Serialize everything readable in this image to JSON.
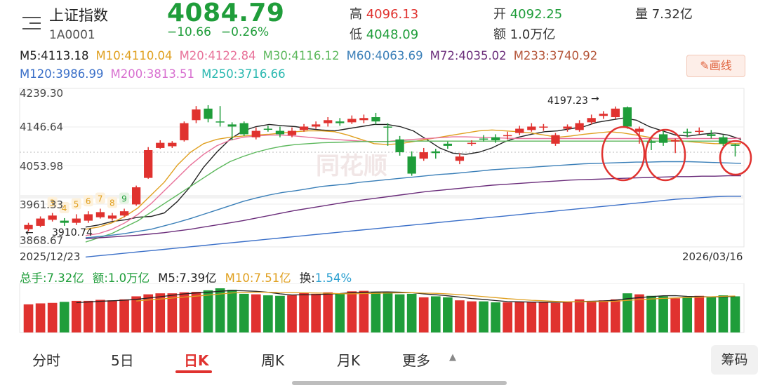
{
  "header": {
    "title": "上证指数",
    "code": "1A0001",
    "price": "4084.79",
    "change_abs": "−10.66",
    "change_pct": "−0.26%",
    "high_label": "高",
    "high_value": "4096.13",
    "low_label": "低",
    "low_value": "4048.09",
    "open_label": "开",
    "open_value": "4092.25",
    "amount_label": "额",
    "amount_value": "1.0万亿",
    "volume_label": "量",
    "volume_value": "7.32亿"
  },
  "ma_legend": {
    "row1": [
      "M5:4113.18",
      "M10:4110.04",
      "M20:4122.84",
      "M30:4116.12",
      "M60:4063.69",
      "M72:4035.02",
      "M233:3740.92"
    ],
    "row2": [
      "M120:3986.99",
      "M200:3813.51",
      "M250:3716.66"
    ],
    "colors": {
      "M5": "#222222",
      "M10": "#e0a020",
      "M20": "#e8729a",
      "M30": "#5cb85c",
      "M60": "#3a7fb8",
      "M72": "#6a2c7a",
      "M233": "#b5563a",
      "M120": "#3a6fc8",
      "M200": "#d870d0",
      "M250": "#2ab8b0"
    }
  },
  "draw_button": "画线",
  "y_axis": [
    "4239.30",
    "4146.64",
    "4053.98",
    "3961.33",
    "3868.67"
  ],
  "dates": {
    "start": "2025/12/23",
    "end": "2026/03/16"
  },
  "annotations": {
    "high_mark": "4197.23",
    "low_mark": "3910.74"
  },
  "seq_counts": [
    "3",
    "4",
    "5",
    "6",
    "7",
    "8",
    "9"
  ],
  "watermark": "同花顺",
  "volume_legend": {
    "total": "总手:7.32亿",
    "amount": "额:1.0万亿",
    "m5": "M5:7.39亿",
    "m10": "M10:7.51亿",
    "turnover_label": "换:",
    "turnover_value": "1.54%"
  },
  "tabs": [
    "分时",
    "5日",
    "日K",
    "周K",
    "月K",
    "更多"
  ],
  "active_tab": "日K",
  "chip_button": "筹码",
  "colors": {
    "up": "#e0322f",
    "down": "#1f9d3a"
  },
  "chart_data": {
    "type": "candlestick",
    "ylim": [
      3868.67,
      4239.3
    ],
    "candles": [
      {
        "o": 3910,
        "c": 3920,
        "h": 3925,
        "l": 3905,
        "v": 5.6
      },
      {
        "o": 3918,
        "c": 3935,
        "h": 3940,
        "l": 3915,
        "v": 5.8
      },
      {
        "o": 3932,
        "c": 3942,
        "h": 3948,
        "l": 3928,
        "v": 5.9
      },
      {
        "o": 3930,
        "c": 3925,
        "h": 3936,
        "l": 3918,
        "v": 6.1
      },
      {
        "o": 3925,
        "c": 3935,
        "h": 3945,
        "l": 3920,
        "v": 6.3
      },
      {
        "o": 3930,
        "c": 3945,
        "h": 3952,
        "l": 3925,
        "v": 6.3
      },
      {
        "o": 3938,
        "c": 3950,
        "h": 3958,
        "l": 3935,
        "v": 6.5
      },
      {
        "o": 3935,
        "c": 3942,
        "h": 3948,
        "l": 3930,
        "v": 6.4
      },
      {
        "o": 3942,
        "c": 3952,
        "h": 3958,
        "l": 3938,
        "v": 6.6
      },
      {
        "o": 3968,
        "c": 4008,
        "h": 4012,
        "l": 3965,
        "v": 7.2
      },
      {
        "o": 4030,
        "c": 4095,
        "h": 4102,
        "l": 4028,
        "v": 7.6
      },
      {
        "o": 4100,
        "c": 4112,
        "h": 4118,
        "l": 4098,
        "v": 7.8
      },
      {
        "o": 4104,
        "c": 4112,
        "h": 4116,
        "l": 4100,
        "v": 7.8
      },
      {
        "o": 4118,
        "c": 4158,
        "h": 4162,
        "l": 4115,
        "v": 8.0
      },
      {
        "o": 4165,
        "c": 4190,
        "h": 4198,
        "l": 4158,
        "v": 8.1
      },
      {
        "o": 4192,
        "c": 4168,
        "h": 4200,
        "l": 4160,
        "v": 8.4
      },
      {
        "o": 4162,
        "c": 4160,
        "h": 4198,
        "l": 4150,
        "v": 8.8
      },
      {
        "o": 4155,
        "c": 4150,
        "h": 4160,
        "l": 4118,
        "v": 8.5
      },
      {
        "o": 4158,
        "c": 4132,
        "h": 4162,
        "l": 4128,
        "v": 7.7
      },
      {
        "o": 4125,
        "c": 4140,
        "h": 4148,
        "l": 4120,
        "v": 7.6
      },
      {
        "o": 4145,
        "c": 4144,
        "h": 4152,
        "l": 4138,
        "v": 7.4
      },
      {
        "o": 4140,
        "c": 4132,
        "h": 4150,
        "l": 4125,
        "v": 7.3
      },
      {
        "o": 4130,
        "c": 4140,
        "h": 4148,
        "l": 4125,
        "v": 7.4
      },
      {
        "o": 4142,
        "c": 4150,
        "h": 4156,
        "l": 4138,
        "v": 7.9
      },
      {
        "o": 4150,
        "c": 4155,
        "h": 4162,
        "l": 4145,
        "v": 7.7
      },
      {
        "o": 4158,
        "c": 4165,
        "h": 4172,
        "l": 4150,
        "v": 8.0
      },
      {
        "o": 4162,
        "c": 4158,
        "h": 4170,
        "l": 4152,
        "v": 7.8
      },
      {
        "o": 4160,
        "c": 4168,
        "h": 4176,
        "l": 4156,
        "v": 8.2
      },
      {
        "o": 4165,
        "c": 4170,
        "h": 4178,
        "l": 4158,
        "v": 8.3
      },
      {
        "o": 4172,
        "c": 4162,
        "h": 4182,
        "l": 4155,
        "v": 8.0
      },
      {
        "o": 4150,
        "c": 4148,
        "h": 4158,
        "l": 4105,
        "v": 8.1
      },
      {
        "o": 4120,
        "c": 4090,
        "h": 4128,
        "l": 4082,
        "v": 7.6
      },
      {
        "o": 4080,
        "c": 4040,
        "h": 4092,
        "l": 4035,
        "v": 7.7
      },
      {
        "o": 4075,
        "c": 4090,
        "h": 4100,
        "l": 4070,
        "v": 7.0
      },
      {
        "o": 4092,
        "c": 4088,
        "h": 4098,
        "l": 4075,
        "v": 7.2
      },
      {
        "o": 4110,
        "c": 4105,
        "h": 4115,
        "l": 4098,
        "v": 7.0
      },
      {
        "o": 4070,
        "c": 4080,
        "h": 4088,
        "l": 4062,
        "v": 6.4
      },
      {
        "o": 4110,
        "c": 4112,
        "h": 4118,
        "l": 4105,
        "v": 6.2
      },
      {
        "o": 4122,
        "c": 4120,
        "h": 4130,
        "l": 4115,
        "v": 6.2
      },
      {
        "o": 4125,
        "c": 4118,
        "h": 4132,
        "l": 4112,
        "v": 6.0
      },
      {
        "o": 4128,
        "c": 4130,
        "h": 4138,
        "l": 4120,
        "v": 6.0
      },
      {
        "o": 4135,
        "c": 4145,
        "h": 4152,
        "l": 4130,
        "v": 6.1
      },
      {
        "o": 4142,
        "c": 4150,
        "h": 4158,
        "l": 4138,
        "v": 6.0
      },
      {
        "o": 4148,
        "c": 4150,
        "h": 4156,
        "l": 4140,
        "v": 6.1
      },
      {
        "o": 4110,
        "c": 4130,
        "h": 4135,
        "l": 4105,
        "v": 5.9
      },
      {
        "o": 4145,
        "c": 4150,
        "h": 4155,
        "l": 4138,
        "v": 6.2
      },
      {
        "o": 4142,
        "c": 4158,
        "h": 4165,
        "l": 4138,
        "v": 6.6
      },
      {
        "o": 4160,
        "c": 4170,
        "h": 4178,
        "l": 4155,
        "v": 6.3
      },
      {
        "o": 4175,
        "c": 4180,
        "h": 4186,
        "l": 4168,
        "v": 6.4
      },
      {
        "o": 4172,
        "c": 4192,
        "h": 4197,
        "l": 4168,
        "v": 6.6
      },
      {
        "o": 4195,
        "c": 4150,
        "h": 4197,
        "l": 4145,
        "v": 7.8
      },
      {
        "o": 4138,
        "c": 4145,
        "h": 4150,
        "l": 4110,
        "v": 7.6
      },
      {
        "o": 4115,
        "c": 4112,
        "h": 4120,
        "l": 4095,
        "v": 7.3
      },
      {
        "o": 4132,
        "c": 4112,
        "h": 4140,
        "l": 4105,
        "v": 7.2
      },
      {
        "o": 4115,
        "c": 4118,
        "h": 4122,
        "l": 4088,
        "v": 6.8
      },
      {
        "o": 4138,
        "c": 4135,
        "h": 4145,
        "l": 4125,
        "v": 7.1
      },
      {
        "o": 4138,
        "c": 4140,
        "h": 4148,
        "l": 4132,
        "v": 7.3
      },
      {
        "o": 4132,
        "c": 4128,
        "h": 4142,
        "l": 4122,
        "v": 7.0
      },
      {
        "o": 4125,
        "c": 4110,
        "h": 4130,
        "l": 4105,
        "v": 7.4
      },
      {
        "o": 4108,
        "c": 4105,
        "h": 4110,
        "l": 4080,
        "v": 7.2
      }
    ],
    "ma_lines": {
      "M5": [
        3915,
        3920,
        3928,
        3932,
        3938,
        3940,
        3948,
        3975,
        4010,
        4055,
        4090,
        4120,
        4140,
        4150,
        4155,
        4152,
        4150,
        4145,
        4142,
        4140,
        4145,
        4150,
        4155,
        4155,
        4150,
        4140,
        4120,
        4100,
        4088,
        4085,
        4090,
        4100,
        4115,
        4125,
        4132,
        4138,
        4140,
        4145,
        4150,
        4160,
        4165,
        4170,
        4165,
        4150,
        4140,
        4130,
        4128,
        4132,
        4135,
        4130,
        4120
      ],
      "M10": [
        3910,
        3915,
        3925,
        3940,
        3960,
        3990,
        4020,
        4060,
        4090,
        4110,
        4120,
        4125,
        4128,
        4130,
        4132,
        4135,
        4138,
        4140,
        4140,
        4138,
        4130,
        4120,
        4110,
        4108,
        4110,
        4115,
        4120,
        4125,
        4130,
        4135,
        4140,
        4142,
        4140,
        4138,
        4135,
        4130,
        4125,
        4128,
        4132,
        4135,
        4138,
        4135,
        4130,
        4125,
        4120,
        4118,
        4115,
        4112,
        4110,
        4110,
        4110
      ],
      "M20": [
        3895,
        3900,
        3910,
        3925,
        3945,
        3970,
        4000,
        4030,
        4060,
        4085,
        4105,
        4118,
        4125,
        4128,
        4130,
        4130,
        4128,
        4125,
        4122,
        4120,
        4118,
        4116,
        4115,
        4115,
        4118,
        4120,
        4122,
        4124,
        4126,
        4126,
        4125,
        4124,
        4123,
        4122,
        4122,
        4122,
        4122,
        4122,
        4122,
        4122,
        4122,
        4122,
        4122,
        4122,
        4122,
        4122,
        4122,
        4122,
        4122,
        4122,
        4123
      ],
      "M30": [
        3880,
        3890,
        3900,
        3915,
        3930,
        3950,
        3970,
        3990,
        4010,
        4030,
        4050,
        4068,
        4080,
        4090,
        4098,
        4104,
        4108,
        4110,
        4112,
        4113,
        4114,
        4115,
        4115,
        4115,
        4116,
        4116,
        4116,
        4116,
        4116,
        4116,
        4116,
        4116,
        4116,
        4116,
        4116,
        4116,
        4116,
        4116,
        4116,
        4116,
        4116,
        4116,
        4116,
        4116,
        4116,
        4116,
        4116,
        4116,
        4116,
        4116,
        4116
      ],
      "M60": [
        3890,
        3893,
        3896,
        3900,
        3905,
        3910,
        3918,
        3926,
        3935,
        3945,
        3955,
        3965,
        3975,
        3983,
        3990,
        3996,
        4000,
        4005,
        4010,
        4013,
        4016,
        4020,
        4023,
        4026,
        4029,
        4032,
        4035,
        4038,
        4040,
        4043,
        4046,
        4049,
        4051,
        4053,
        4055,
        4057,
        4059,
        4061,
        4063,
        4064,
        4065,
        4066,
        4067,
        4067,
        4068,
        4068,
        4068,
        4067,
        4066,
        4065,
        4064
      ],
      "M72": [
        3888,
        3890,
        3892,
        3894,
        3896,
        3899,
        3902,
        3906,
        3910,
        3915,
        3920,
        3925,
        3930,
        3936,
        3942,
        3948,
        3954,
        3959,
        3964,
        3969,
        3974,
        3978,
        3982,
        3986,
        3990,
        3994,
        3998,
        4001,
        4004,
        4007,
        4010,
        4013,
        4015,
        4017,
        4019,
        4021,
        4023,
        4025,
        4026,
        4027,
        4028,
        4029,
        4030,
        4031,
        4032,
        4033,
        4033,
        4034,
        4034,
        4035,
        4035
      ],
      "M120": [
        3845,
        3848,
        3851,
        3854,
        3857,
        3860,
        3863,
        3866,
        3869,
        3872,
        3875,
        3878,
        3881,
        3884,
        3887,
        3890,
        3893,
        3896,
        3899,
        3902,
        3905,
        3908,
        3911,
        3914,
        3917,
        3920,
        3923,
        3926,
        3929,
        3932,
        3935,
        3938,
        3941,
        3944,
        3947,
        3950,
        3953,
        3956,
        3959,
        3962,
        3965,
        3968,
        3971,
        3974,
        3977,
        3980,
        3982,
        3984,
        3986,
        3987,
        3987
      ]
    }
  }
}
